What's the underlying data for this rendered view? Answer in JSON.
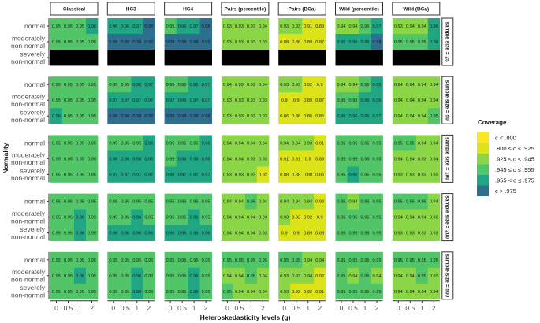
{
  "chart_data": {
    "type": "heatmap",
    "xlabel": "Heteroskedasticity levels (g)",
    "ylabel": "Normality",
    "x_categories": [
      "0",
      "0.5",
      "1",
      "2"
    ],
    "y_categories": [
      "normal",
      "moderately non-normal",
      "severely non-normal"
    ],
    "y_category_lines": [
      [
        "normal"
      ],
      [
        "moderately",
        "non-normal"
      ],
      [
        "severely",
        "non-normal"
      ]
    ],
    "methods": [
      "Classical",
      "HC3",
      "HC4",
      "Pairs (percentile)",
      "Pairs (BCa)",
      "Wild (percentile)",
      "Wild (BCa)"
    ],
    "sample_sizes": [
      "sample size = 25",
      "sample size = 50",
      "sample size = 100",
      "sample size = 200",
      "sample size = 500"
    ],
    "legend": {
      "title": "Coverage",
      "placement": "right",
      "entries": [
        {
          "label": "c < .800",
          "color": "#FDE725"
        },
        {
          "label": ".800 ≤ c < .925",
          "color": "#DCE319"
        },
        {
          "label": ".925 ≤ c < .945",
          "color": "#8BD646"
        },
        {
          "label": ".945 ≤ c ≤ .955",
          "color": "#52C569"
        },
        {
          "label": ".955 < c ≤ .975",
          "color": "#21A685"
        },
        {
          "label": "c > .975",
          "color": "#2E6E8E"
        }
      ],
      "missing_color": "#000000"
    },
    "values": [
      [
        [
          [
            0.95,
            0.95,
            0.95,
            0.96
          ],
          [
            0.95,
            0.95,
            0.95,
            0.95
          ],
          null
        ],
        [
          [
            0.96,
            0.96,
            0.97,
            0.98
          ],
          [
            0.98,
            0.98,
            0.98,
            0.99
          ],
          null
        ],
        [
          [
            0.95,
            0.96,
            0.97,
            0.98
          ],
          [
            0.98,
            0.98,
            0.98,
            0.99
          ],
          null
        ],
        [
          [
            0.93,
            0.93,
            0.93,
            0.94
          ],
          [
            0.93,
            0.93,
            0.93,
            0.93
          ],
          null
        ],
        [
          [
            0.93,
            0.93,
            0.91,
            0.89
          ],
          [
            0.88,
            0.88,
            0.89,
            0.87
          ],
          null
        ],
        [
          [
            0.94,
            0.94,
            0.95,
            0.97
          ],
          [
            0.96,
            0.96,
            0.96,
            0.98
          ],
          null
        ],
        [
          [
            0.93,
            0.94,
            0.94,
            0.96
          ],
          [
            0.95,
            0.95,
            0.95,
            0.96
          ],
          null
        ]
      ],
      [
        [
          [
            0.95,
            0.95,
            0.95,
            0.95
          ],
          [
            0.95,
            0.95,
            0.95,
            0.95
          ],
          [
            0.96,
            0.95,
            0.95,
            0.95
          ]
        ],
        [
          [
            0.95,
            0.95,
            0.96,
            0.97
          ],
          [
            0.97,
            0.97,
            0.97,
            0.97
          ],
          [
            0.98,
            0.98,
            0.98,
            0.98
          ]
        ],
        [
          [
            0.95,
            0.95,
            0.96,
            0.97
          ],
          [
            0.97,
            0.96,
            0.97,
            0.97
          ],
          [
            0.98,
            0.98,
            0.98,
            0.98
          ]
        ],
        [
          [
            0.94,
            0.93,
            0.93,
            0.94
          ],
          [
            0.93,
            0.93,
            0.93,
            0.93
          ],
          [
            0.93,
            0.93,
            0.93,
            0.93
          ]
        ],
        [
          [
            0.93,
            0.93,
            0.92,
            0.9
          ],
          [
            0.9,
            0.9,
            0.89,
            0.87
          ],
          [
            0.86,
            0.86,
            0.86,
            0.85
          ]
        ],
        [
          [
            0.94,
            0.94,
            0.95,
            0.96
          ],
          [
            0.95,
            0.95,
            0.96,
            0.96
          ],
          [
            0.96,
            0.96,
            0.96,
            0.97
          ]
        ],
        [
          [
            0.94,
            0.94,
            0.94,
            0.94
          ],
          [
            0.94,
            0.94,
            0.94,
            0.94
          ],
          [
            0.94,
            0.94,
            0.94,
            0.95
          ]
        ]
      ],
      [
        [
          [
            0.95,
            0.95,
            0.95,
            0.95
          ],
          [
            0.95,
            0.95,
            0.95,
            0.95
          ],
          [
            0.95,
            0.95,
            0.95,
            0.95
          ]
        ],
        [
          [
            0.95,
            0.95,
            0.95,
            0.96
          ],
          [
            0.96,
            0.96,
            0.96,
            0.96
          ],
          [
            0.97,
            0.97,
            0.97,
            0.97
          ]
        ],
        [
          [
            0.95,
            0.95,
            0.95,
            0.96
          ],
          [
            0.95,
            0.96,
            0.96,
            0.96
          ],
          [
            0.96,
            0.97,
            0.97,
            0.97
          ]
        ],
        [
          [
            0.94,
            0.94,
            0.94,
            0.94
          ],
          [
            0.94,
            0.94,
            0.93,
            0.93
          ],
          [
            0.93,
            0.93,
            0.93,
            0.92
          ]
        ],
        [
          [
            0.94,
            0.94,
            0.93,
            0.91
          ],
          [
            0.91,
            0.91,
            0.9,
            0.89
          ],
          [
            0.88,
            0.88,
            0.88,
            0.86
          ]
        ],
        [
          [
            0.95,
            0.95,
            0.95,
            0.95
          ],
          [
            0.95,
            0.95,
            0.95,
            0.95
          ],
          [
            0.95,
            0.96,
            0.95,
            0.95
          ]
        ],
        [
          [
            0.95,
            0.95,
            0.94,
            0.94
          ],
          [
            0.94,
            0.94,
            0.93,
            0.94
          ],
          [
            0.93,
            0.93,
            0.93,
            0.93
          ]
        ]
      ],
      [
        [
          [
            0.95,
            0.95,
            0.95,
            0.95
          ],
          [
            0.95,
            0.95,
            0.96,
            0.95
          ],
          [
            0.95,
            0.95,
            0.96,
            0.95
          ]
        ],
        [
          [
            0.95,
            0.95,
            0.95,
            0.95
          ],
          [
            0.95,
            0.95,
            0.96,
            0.95
          ],
          [
            0.96,
            0.96,
            0.96,
            0.96
          ]
        ],
        [
          [
            0.95,
            0.95,
            0.95,
            0.95
          ],
          [
            0.95,
            0.95,
            0.96,
            0.95
          ],
          [
            0.96,
            0.96,
            0.96,
            0.96
          ]
        ],
        [
          [
            0.94,
            0.94,
            0.95,
            0.94
          ],
          [
            0.94,
            0.94,
            0.94,
            0.93
          ],
          [
            0.94,
            0.94,
            0.94,
            0.93
          ]
        ],
        [
          [
            0.94,
            0.94,
            0.94,
            0.92
          ],
          [
            0.93,
            0.92,
            0.92,
            0.9
          ],
          [
            0.9,
            0.9,
            0.89,
            0.88
          ]
        ],
        [
          [
            0.95,
            0.94,
            0.95,
            0.95
          ],
          [
            0.95,
            0.95,
            0.95,
            0.95
          ],
          [
            0.95,
            0.95,
            0.95,
            0.95
          ]
        ],
        [
          [
            0.95,
            0.95,
            0.95,
            0.94
          ],
          [
            0.94,
            0.94,
            0.94,
            0.93
          ],
          [
            0.93,
            0.93,
            0.93,
            0.93
          ]
        ]
      ],
      [
        [
          [
            0.95,
            0.95,
            0.95,
            0.95
          ],
          [
            0.95,
            0.95,
            0.96,
            0.95
          ],
          [
            0.95,
            0.95,
            0.95,
            0.95
          ]
        ],
        [
          [
            0.95,
            0.95,
            0.95,
            0.95
          ],
          [
            0.95,
            0.95,
            0.96,
            0.95
          ],
          [
            0.95,
            0.95,
            0.96,
            0.95
          ]
        ],
        [
          [
            0.95,
            0.95,
            0.95,
            0.95
          ],
          [
            0.95,
            0.95,
            0.96,
            0.95
          ],
          [
            0.95,
            0.95,
            0.96,
            0.95
          ]
        ],
        [
          [
            0.95,
            0.95,
            0.95,
            0.95
          ],
          [
            0.94,
            0.94,
            0.95,
            0.94
          ],
          [
            0.95,
            0.94,
            0.94,
            0.94
          ]
        ],
        [
          [
            0.95,
            0.95,
            0.94,
            0.94
          ],
          [
            0.93,
            0.93,
            0.94,
            0.92
          ],
          [
            0.93,
            0.92,
            0.92,
            0.91
          ]
        ],
        [
          [
            0.95,
            0.95,
            0.95,
            0.95
          ],
          [
            0.95,
            0.94,
            0.95,
            0.94
          ],
          [
            0.95,
            0.95,
            0.95,
            0.95
          ]
        ],
        [
          [
            0.95,
            0.95,
            0.95,
            0.95
          ],
          [
            0.94,
            0.94,
            0.95,
            0.93
          ],
          [
            0.94,
            0.94,
            0.94,
            0.94
          ]
        ]
      ]
    ]
  }
}
